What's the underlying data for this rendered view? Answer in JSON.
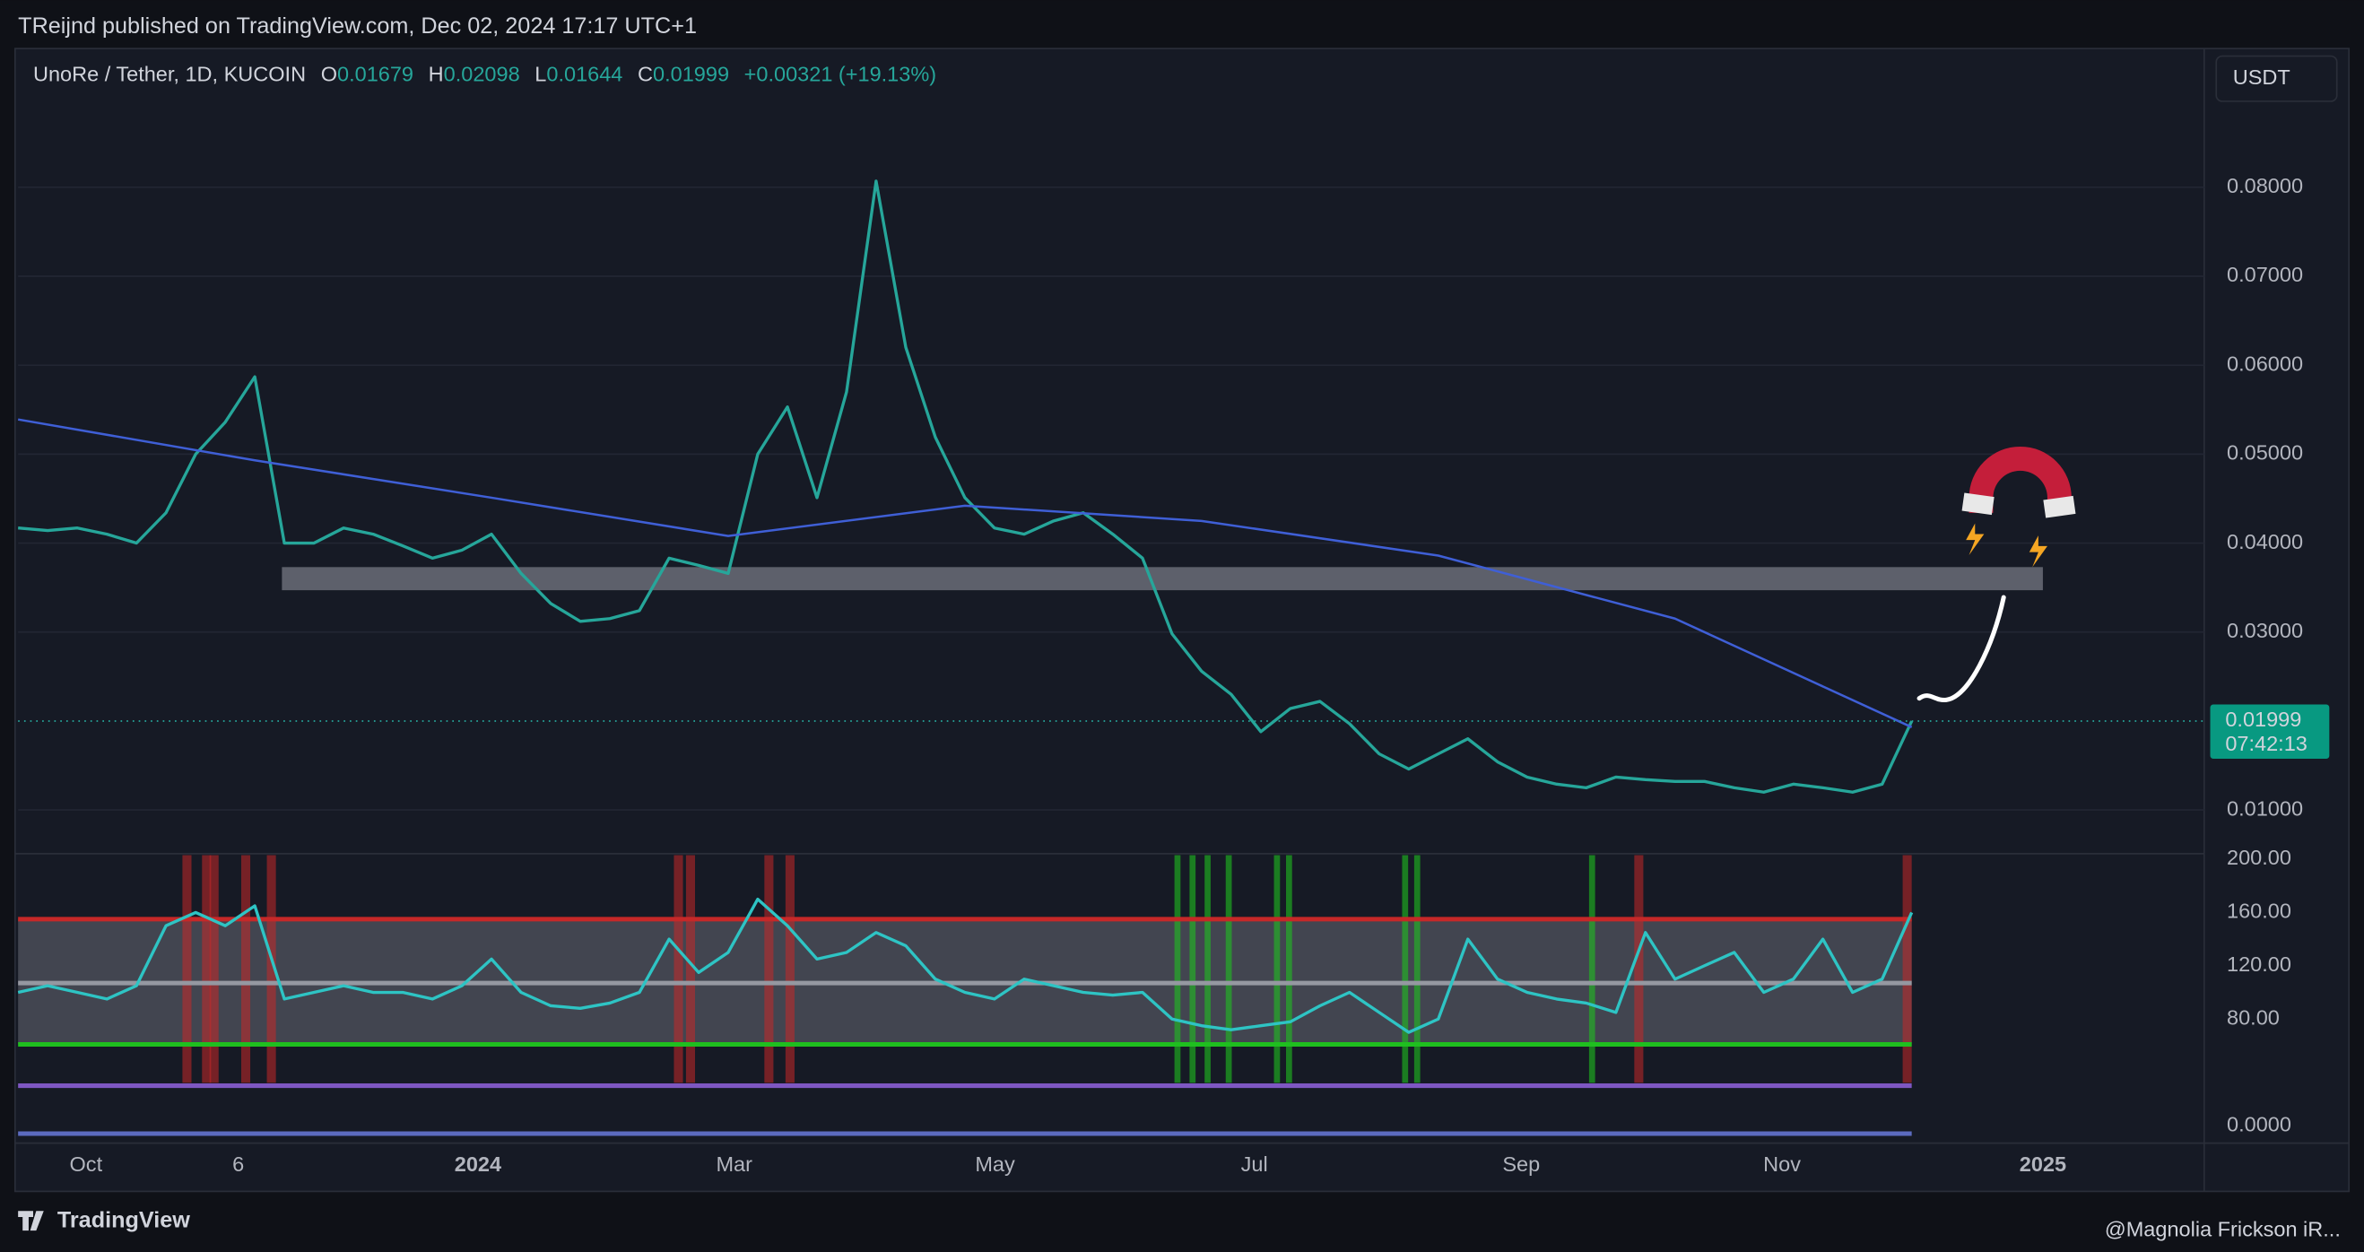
{
  "header": {
    "text": "TReijnd published on TradingView.com, Dec 02, 2024 17:17 UTC+1"
  },
  "legend": {
    "symbol": "UnoRe / Tether, 1D, KUCOIN",
    "ohlc": [
      {
        "key": "O",
        "value": "0.01679"
      },
      {
        "key": "H",
        "value": "0.02098"
      },
      {
        "key": "L",
        "value": "0.01644"
      },
      {
        "key": "C",
        "value": "0.01999"
      }
    ],
    "change": "+0.00321 (+19.13%)"
  },
  "currency_button": "USDT",
  "footer": {
    "brand": "TradingView",
    "credit": "@Magnolia Frickson iR..."
  },
  "chart_data": [
    {
      "type": "line",
      "ylim": [
        0.005,
        0.095
      ],
      "yticks": [
        {
          "value": 0.01,
          "label": "0.01000"
        },
        {
          "value": 0.03,
          "label": "0.03000"
        },
        {
          "value": 0.04,
          "label": "0.04000"
        },
        {
          "value": 0.05,
          "label": "0.05000"
        },
        {
          "value": 0.06,
          "label": "0.06000"
        },
        {
          "value": 0.07,
          "label": "0.07000"
        },
        {
          "value": 0.08,
          "label": "0.08000"
        }
      ],
      "grid": true,
      "x_labels": [
        "Oct",
        "6",
        "2024",
        "Mar",
        "May",
        "Jul",
        "Sep",
        "Nov",
        "2025"
      ],
      "series": [
        {
          "name": "UnoRe / Tether",
          "color": "#26a69a",
          "values": [
            0.0417,
            0.0414,
            0.0417,
            0.041,
            0.04,
            0.0434,
            0.05,
            0.0536,
            0.0587,
            0.04,
            0.04,
            0.0417,
            0.041,
            0.0397,
            0.0383,
            0.0392,
            0.041,
            0.0366,
            0.0332,
            0.0312,
            0.0315,
            0.0324,
            0.0383,
            0.0375,
            0.0366,
            0.05,
            0.0553,
            0.0451,
            0.057,
            0.0807,
            0.062,
            0.0519,
            0.0451,
            0.0417,
            0.041,
            0.0425,
            0.0434,
            0.041,
            0.0383,
            0.0298,
            0.0256,
            0.023,
            0.0188,
            0.0214,
            0.0222,
            0.0197,
            0.0163,
            0.0146,
            0.0163,
            0.018,
            0.0154,
            0.0137,
            0.0129,
            0.0125,
            0.0137,
            0.0134,
            0.0132,
            0.0132,
            0.0125,
            0.012,
            0.0129,
            0.0125,
            0.012,
            0.0129,
            0.01999
          ]
        },
        {
          "name": "MA",
          "color": "#3f5fd6",
          "values": [
            0.0539,
            0.0493,
            0.0451,
            0.0408,
            0.0442,
            0.0425,
            0.0386,
            0.0315,
            0.0193
          ]
        }
      ],
      "zone": [
        0.0347,
        0.0373
      ],
      "last_price": 0.01999,
      "countdown": "07:42:13"
    },
    {
      "type": "line",
      "ylim": [
        -12,
        203
      ],
      "yticks": [
        {
          "value": 0,
          "label": "0.0000"
        },
        {
          "value": 80,
          "label": "80.00"
        },
        {
          "value": 120,
          "label": "120.00"
        },
        {
          "value": 160,
          "label": "160.00"
        },
        {
          "value": 200,
          "label": "200.00"
        }
      ],
      "band": [
        61,
        155
      ],
      "levels": [
        {
          "value": 155,
          "color": "#c62828"
        },
        {
          "value": 107,
          "color": "#9598a1"
        },
        {
          "value": 61,
          "color": "#1fbf1f"
        },
        {
          "value": 30,
          "color": "#7e57c2"
        },
        {
          "value": -6,
          "color": "#5c6bc0"
        }
      ],
      "series": [
        {
          "name": "Indicator",
          "color": "#2ec4c4",
          "values": [
            100,
            105,
            100,
            95,
            105,
            150,
            160,
            150,
            165,
            95,
            100,
            105,
            100,
            100,
            95,
            105,
            125,
            100,
            90,
            88,
            92,
            100,
            140,
            115,
            130,
            170,
            150,
            125,
            130,
            145,
            135,
            110,
            100,
            95,
            110,
            105,
            100,
            98,
            100,
            80,
            75,
            72,
            75,
            78,
            90,
            100,
            85,
            70,
            80,
            140,
            110,
            100,
            95,
            92,
            85,
            145,
            110,
            120,
            130,
            100,
            110,
            140,
            100,
            110,
            160
          ]
        }
      ]
    }
  ]
}
